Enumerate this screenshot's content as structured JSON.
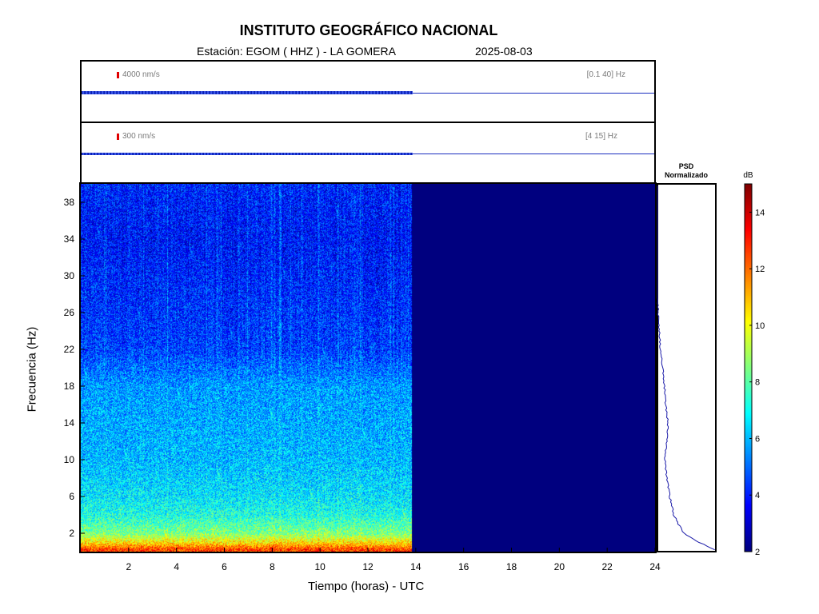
{
  "header": {
    "title": "INSTITUTO GEOGRÁFICO NACIONAL",
    "station_label": "Estación:  EGOM ( HHZ ) - LA GOMERA",
    "date": "2025-08-03"
  },
  "trace_panels": [
    {
      "scale": "4000 nm/s",
      "band": "[0.1 40] Hz"
    },
    {
      "scale": "300 nm/s",
      "band": "[4 15] Hz"
    }
  ],
  "psd": {
    "title_line1": "PSD",
    "title_line2": "Normalizado"
  },
  "colorbar": {
    "unit": "dB",
    "ticks": [
      "2",
      "4",
      "6",
      "8",
      "10",
      "12",
      "14"
    ],
    "range": [
      2,
      15
    ],
    "colormap": "jet"
  },
  "axes": {
    "xlabel": "Tiempo (horas) - UTC",
    "ylabel": "Frecuencia  (Hz)",
    "xticks": [
      "2",
      "4",
      "6",
      "8",
      "10",
      "12",
      "14",
      "16",
      "18",
      "20",
      "22",
      "24"
    ],
    "yticks": [
      "2",
      "6",
      "10",
      "14",
      "18",
      "22",
      "26",
      "30",
      "34",
      "38"
    ]
  },
  "chart_data": {
    "type": "heatmap",
    "title": "INSTITUTO GEOGRÁFICO NACIONAL",
    "xlabel": "Tiempo (horas) - UTC",
    "ylabel": "Frecuencia  (Hz)",
    "xlim": [
      0,
      24
    ],
    "ylim": [
      0,
      40
    ],
    "data_end_hour": 13.85,
    "no_data_color": "#00007f",
    "colorbar_range_db": [
      2,
      15
    ],
    "approx_db_by_frequency_hz": [
      {
        "f": 0.3,
        "db": 12.5
      },
      {
        "f": 1,
        "db": 10.5
      },
      {
        "f": 2,
        "db": 8.5
      },
      {
        "f": 4,
        "db": 7.2
      },
      {
        "f": 6,
        "db": 6.6
      },
      {
        "f": 10,
        "db": 6.0
      },
      {
        "f": 14,
        "db": 5.8
      },
      {
        "f": 18,
        "db": 5.6
      },
      {
        "f": 20,
        "db": 5.0
      },
      {
        "f": 22,
        "db": 4.4
      },
      {
        "f": 26,
        "db": 4.2
      },
      {
        "f": 30,
        "db": 4.0
      },
      {
        "f": 34,
        "db": 3.8
      },
      {
        "f": 40,
        "db": 4.0
      }
    ],
    "psd_normalized": [
      {
        "f": 0.2,
        "v": 0.98
      },
      {
        "f": 1,
        "v": 0.72
      },
      {
        "f": 2,
        "v": 0.45
      },
      {
        "f": 3,
        "v": 0.36
      },
      {
        "f": 4,
        "v": 0.28
      },
      {
        "f": 6,
        "v": 0.21
      },
      {
        "f": 8,
        "v": 0.16
      },
      {
        "f": 10,
        "v": 0.13
      },
      {
        "f": 12,
        "v": 0.16
      },
      {
        "f": 14,
        "v": 0.18
      },
      {
        "f": 16,
        "v": 0.14
      },
      {
        "f": 18,
        "v": 0.12
      },
      {
        "f": 20,
        "v": 0.09
      },
      {
        "f": 22,
        "v": 0.05
      },
      {
        "f": 24,
        "v": 0.03
      },
      {
        "f": 26,
        "v": 0.01
      },
      {
        "f": 28,
        "v": 0.0
      },
      {
        "f": 40,
        "v": 0.0
      }
    ]
  }
}
